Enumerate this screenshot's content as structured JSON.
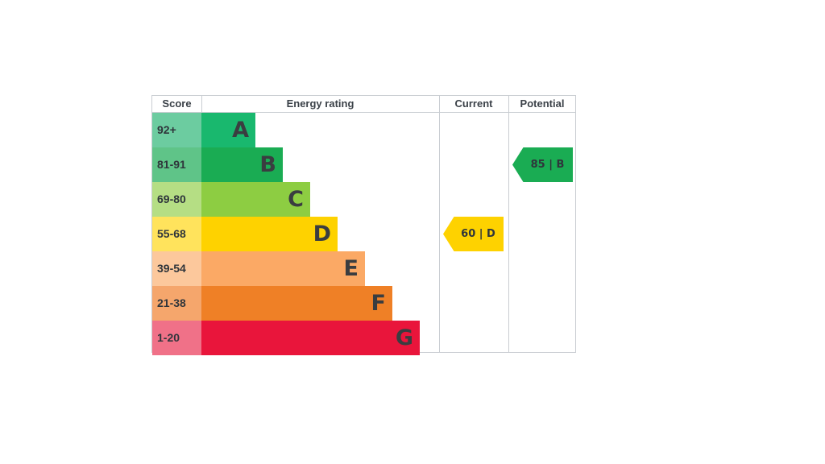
{
  "chart_data": {
    "type": "table",
    "headers": {
      "score": "Score",
      "rating": "Energy rating",
      "current": "Current",
      "potential": "Potential"
    },
    "bands": [
      {
        "score": "92+",
        "letter": "A",
        "color": "#19b86e",
        "score_color": "#6ccca0"
      },
      {
        "score": "81-91",
        "letter": "B",
        "color": "#1aac53",
        "score_color": "#5fc488"
      },
      {
        "score": "69-80",
        "letter": "C",
        "color": "#8dcd42",
        "score_color": "#b5de84"
      },
      {
        "score": "55-68",
        "letter": "D",
        "color": "#fed200",
        "score_color": "#ffe35c"
      },
      {
        "score": "39-54",
        "letter": "E",
        "color": "#fba965",
        "score_color": "#fcc89c"
      },
      {
        "score": "21-38",
        "letter": "F",
        "color": "#ef8026",
        "score_color": "#f5a66c"
      },
      {
        "score": "1-20",
        "letter": "G",
        "color": "#e9153b",
        "score_color": "#f07188"
      }
    ],
    "current": {
      "value": 60,
      "band": "D",
      "label": "60 | D",
      "color": "#fed200"
    },
    "potential": {
      "value": 85,
      "band": "B",
      "label": "85 | B",
      "color": "#1aac53"
    }
  }
}
